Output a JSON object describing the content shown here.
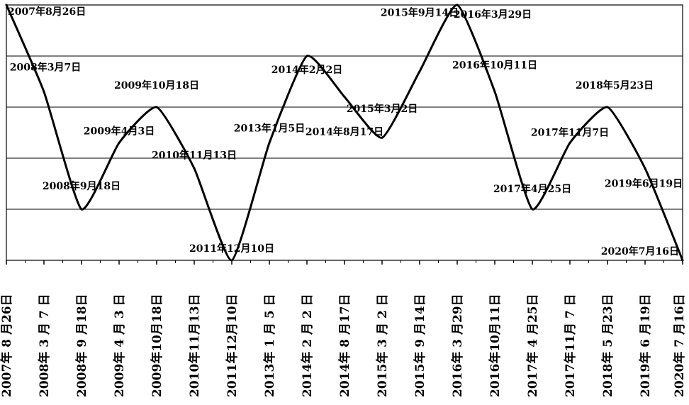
{
  "chart_data": {
    "type": "line",
    "title": "",
    "xlabel": "",
    "ylabel": "",
    "grid": true,
    "legend": "none",
    "line_color": "#000000",
    "x_tick_labels": [
      "2007年 8 月26日",
      "2008年 3 月 7 日",
      "2008年 9 月18日",
      "2009年 4 月 3 日",
      "2009年10月18日",
      "2010年11月13日",
      "2011年12月10日",
      "2013年 1 月 5 日",
      "2014年 2 月 2 日",
      "2014年 8 月17日",
      "2015年 3 月 2 日",
      "2015年 9 月14日",
      "2016年 3 月29日",
      "2016年10月11日",
      "2017年 4 月25日",
      "2017年11月 7 日",
      "2018年 5 月23日",
      "2019年 6 月19日",
      "2020年 7 月16日"
    ],
    "point_labels": [
      "2007年8月26日",
      "2008年3月7日",
      "2008年9月18日",
      "2009年4月3日",
      "2009年10月18日",
      "2010年11月13日",
      "2011年12月10日",
      "2013年1月5日",
      "2014年2月2日",
      "2014年8月17日",
      "2015年3月2日",
      "2015年9月14日",
      "2016年3月29日",
      "2016年10月11日",
      "2017年4月25日",
      "2017年11月7日",
      "2018年5月23日",
      "2019年6月19日",
      "2020年7月16日"
    ],
    "values": [
      5,
      3.3,
      1.0,
      2.3,
      3.0,
      1.8,
      0,
      2.3,
      4.0,
      3.2,
      2.4,
      3.7,
      5,
      3.3,
      1.0,
      2.3,
      3.0,
      1.8,
      0
    ],
    "ylim": [
      0,
      5
    ],
    "y_gridlines": [
      1,
      2,
      3,
      4
    ]
  }
}
